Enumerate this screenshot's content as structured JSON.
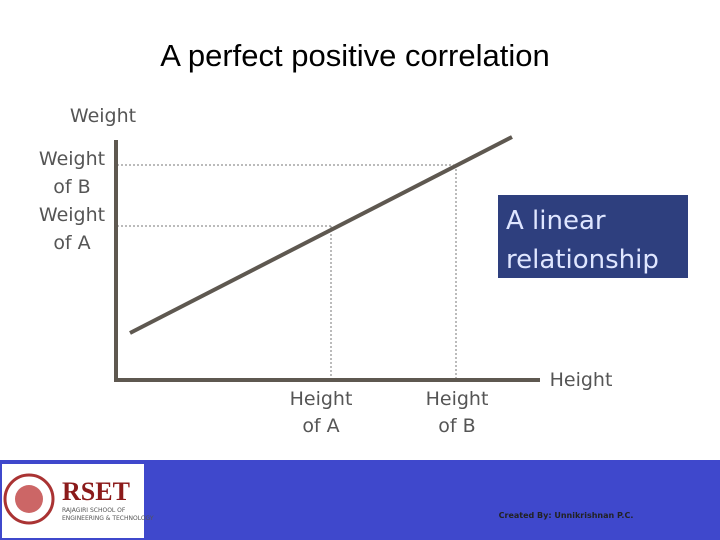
{
  "title": "A perfect positive  correlation",
  "diagram": {
    "y_axis_label": "Weight",
    "x_axis_label": "Height",
    "y_markers": [
      {
        "lines": [
          "Weight",
          "of B"
        ]
      },
      {
        "lines": [
          "Weight",
          "of A"
        ]
      }
    ],
    "x_markers": [
      {
        "lines": [
          "Height",
          "of A"
        ]
      },
      {
        "lines": [
          "Height",
          "of B"
        ]
      }
    ],
    "annotation": [
      "A linear",
      "relationship"
    ]
  },
  "footer": {
    "logo_text": "RSET",
    "logo_subtitle": [
      "RAJAGIRI SCHOOL OF",
      "ENGINEERING & TECHNOLOGY"
    ],
    "credit": "Created By: Unnikrishnan P.C."
  }
}
